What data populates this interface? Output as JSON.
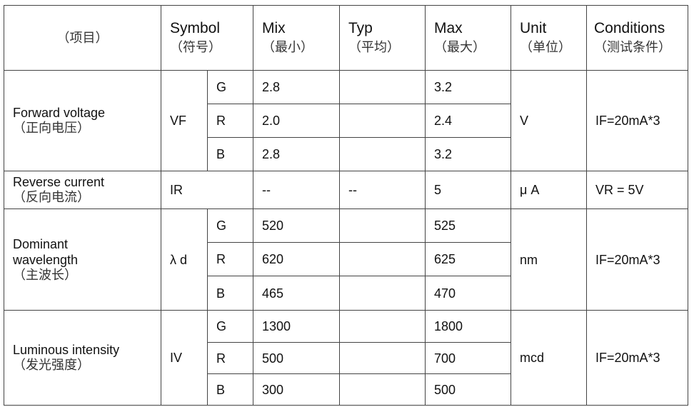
{
  "header": {
    "item": "（项目）",
    "symbol": "Symbol",
    "symbol_cn": "（符号）",
    "min": "Mix",
    "min_cn": "（最小）",
    "typ": "Typ",
    "typ_cn": "（平均）",
    "max": "Max",
    "max_cn": "（最大）",
    "unit": "Unit",
    "unit_cn": "（单位）",
    "conditions": "Conditions",
    "conditions_cn": "（测试条件）"
  },
  "rows": [
    {
      "item": "Forward voltage",
      "item_cn": "（正向电压）",
      "symbol": "VF",
      "unit": "V",
      "conditions": "IF=20mA*3",
      "sub": [
        {
          "color": "G",
          "min": "2.8",
          "typ": "",
          "max": "3.2"
        },
        {
          "color": "R",
          "min": "2.0",
          "typ": "",
          "max": "2.4"
        },
        {
          "color": "B",
          "min": "2.8",
          "typ": "",
          "max": "3.2"
        }
      ]
    },
    {
      "item": "Reverse current",
      "item_cn": "（反向电流）",
      "symbol": "IR",
      "min": "--",
      "typ": "--",
      "max": "5",
      "unit": "μ A",
      "conditions": "VR = 5V"
    },
    {
      "item": "Dominant wavelength",
      "item_cn": "（主波长）",
      "symbol": "λ d",
      "unit": "nm",
      "conditions": "IF=20mA*3",
      "sub": [
        {
          "color": "G",
          "min": "520",
          "typ": "",
          "max": "525"
        },
        {
          "color": "R",
          "min": "620",
          "typ": "",
          "max": "625"
        },
        {
          "color": "B",
          "min": "465",
          "typ": "",
          "max": "470"
        }
      ]
    },
    {
      "item": "Luminous intensity",
      "item_cn": "（发光强度）",
      "symbol": "IV",
      "unit": "mcd",
      "conditions": "IF=20mA*3",
      "sub": [
        {
          "color": "G",
          "min": "1300",
          "typ": "",
          "max": "1800"
        },
        {
          "color": "R",
          "min": "500",
          "typ": "",
          "max": "700"
        },
        {
          "color": "B",
          "min": "300",
          "typ": "",
          "max": "500"
        }
      ]
    }
  ]
}
